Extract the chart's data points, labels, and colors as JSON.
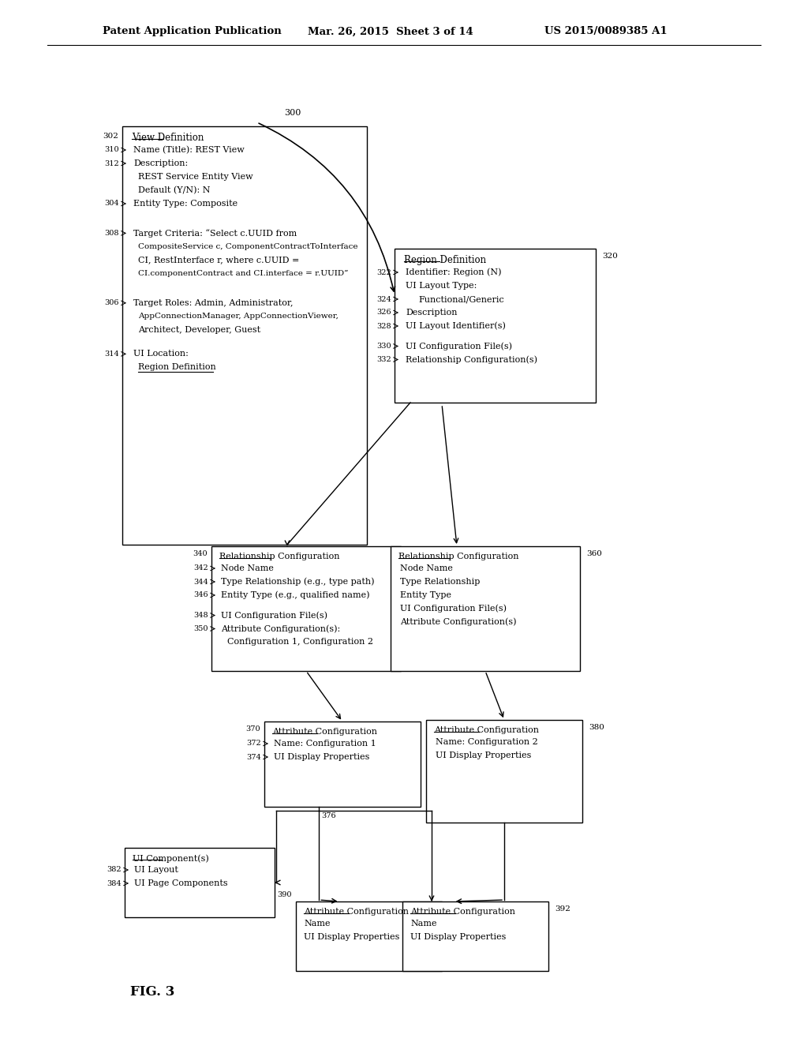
{
  "bg_color": "#ffffff",
  "header_text1": "Patent Application Publication",
  "header_text2": "Mar. 26, 2015  Sheet 3 of 14",
  "header_text3": "US 2015/0089385 A1",
  "fig_label": "FIG. 3"
}
